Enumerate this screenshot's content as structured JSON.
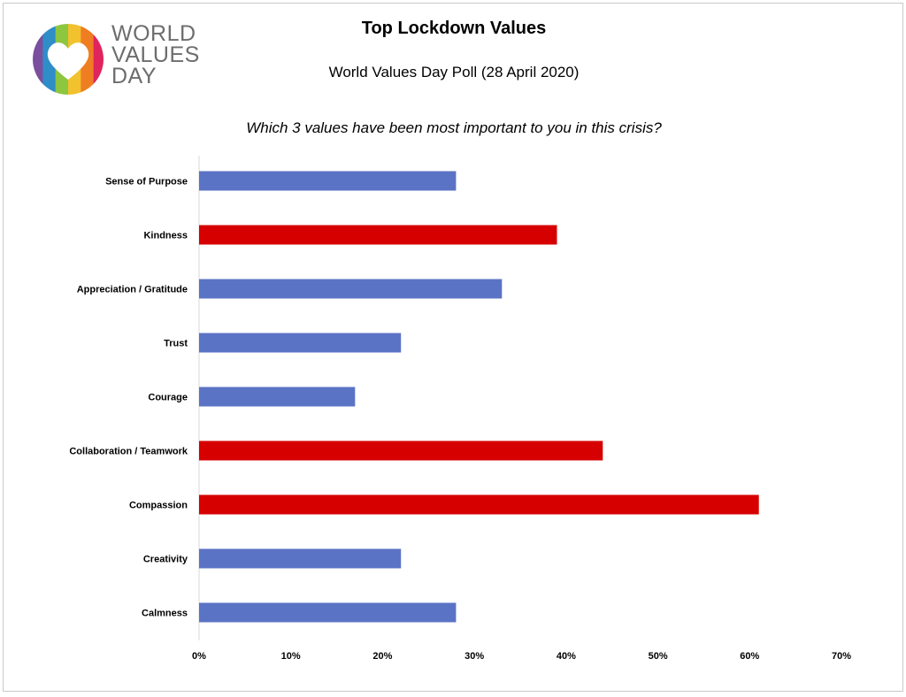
{
  "logo": {
    "lines": [
      "WORLD",
      "VALUES",
      "DAY"
    ],
    "heart_colors": [
      "#7b4f9e",
      "#2f8dc8",
      "#8dc63f",
      "#f2c12e",
      "#ef7d22",
      "#e0245e"
    ],
    "text_color": "#6d6d6d"
  },
  "colors": {
    "blue": "#5b73c4",
    "red": "#d60000"
  },
  "chart_data": {
    "type": "bar",
    "orientation": "horizontal",
    "title": "Top Lockdown Values",
    "subtitle": "World Values Day Poll (28 April 2020)",
    "question": "Which 3 values have been most important to you in this crisis?",
    "categories": [
      "Sense of Purpose",
      "Kindness",
      "Appreciation / Gratitude",
      "Trust",
      "Courage",
      "Collaboration / Teamwork",
      "Compassion",
      "Creativity",
      "Calmness"
    ],
    "values": [
      28,
      39,
      33,
      22,
      17,
      44,
      61,
      22,
      28
    ],
    "highlight": [
      false,
      true,
      false,
      false,
      false,
      true,
      true,
      false,
      false
    ],
    "xlim": [
      0,
      70
    ],
    "xticks": [
      "0%",
      "10%",
      "20%",
      "30%",
      "40%",
      "50%",
      "60%",
      "70%"
    ],
    "grid": false,
    "legend": "none"
  }
}
